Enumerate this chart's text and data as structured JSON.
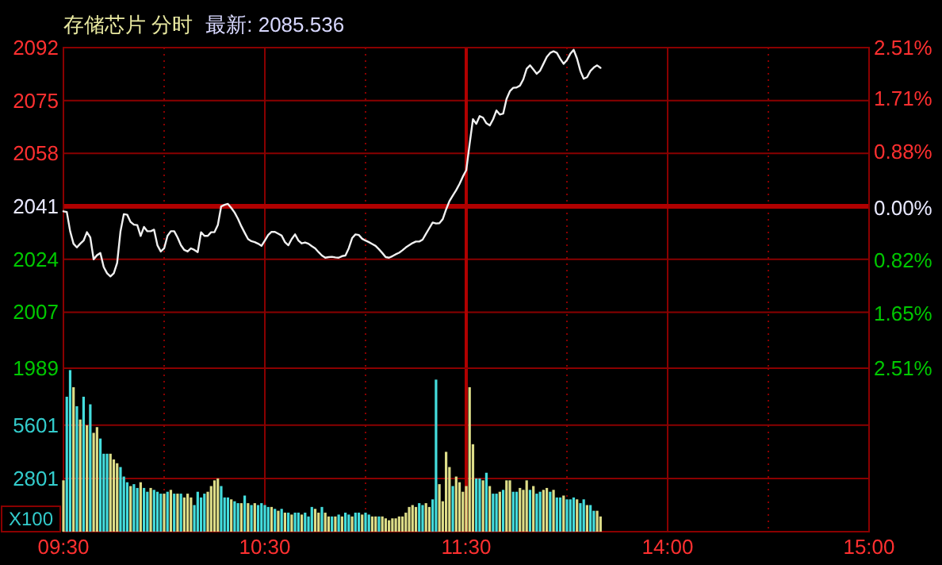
{
  "chart_data": [
    {
      "type": "line",
      "title": "存储芯片 分时",
      "subtitle": "最新: 2085.536",
      "tick_labels": "y",
      "categories": [
        "09:30",
        null,
        null,
        null,
        null,
        null,
        null,
        null,
        null,
        null,
        null,
        null,
        null,
        null,
        null,
        null,
        null,
        null,
        null,
        null,
        null,
        null,
        null,
        null,
        null,
        null,
        null,
        null,
        null,
        null,
        null,
        null,
        null,
        null,
        null,
        null,
        null,
        null,
        null,
        null,
        null,
        null,
        null,
        null,
        null,
        null,
        null,
        null,
        null,
        null,
        null,
        null,
        null,
        null,
        null,
        null,
        null,
        null,
        null,
        null,
        "10:30",
        null,
        null,
        null,
        null,
        null,
        null,
        null,
        null,
        null,
        null,
        null,
        null,
        null,
        null,
        null,
        null,
        null,
        null,
        null,
        null,
        null,
        null,
        null,
        null,
        null,
        null,
        null,
        null,
        null,
        null,
        null,
        null,
        null,
        null,
        null,
        null,
        null,
        null,
        null,
        null,
        null,
        null,
        null,
        null,
        null,
        null,
        null,
        null,
        null,
        null,
        null,
        null,
        null,
        null,
        null,
        null,
        null,
        null,
        null,
        "11:30",
        null,
        null,
        null,
        null,
        null,
        null,
        null,
        null,
        null,
        null,
        null,
        null,
        null,
        null,
        null,
        null,
        null,
        null,
        null,
        null,
        null,
        null,
        null,
        null,
        null,
        null,
        null,
        null,
        null,
        null,
        null,
        null,
        null,
        null,
        null,
        null,
        null,
        null,
        null,
        null,
        null,
        null,
        null,
        null,
        null,
        null,
        null,
        null,
        null,
        null,
        null,
        null,
        null,
        null,
        null,
        null,
        null,
        null,
        null,
        "14:00",
        null,
        null,
        null,
        null,
        null,
        null,
        null,
        null,
        null,
        null,
        null,
        null,
        null,
        null,
        null,
        null,
        null,
        null,
        null,
        null,
        null,
        null,
        null,
        null,
        null,
        null,
        null,
        null,
        null,
        null,
        null,
        null,
        null,
        null,
        null,
        null,
        null,
        null,
        null,
        null,
        null,
        null,
        null,
        null,
        null,
        null,
        null,
        null,
        null,
        null,
        null,
        null,
        null,
        null,
        null,
        null,
        null,
        null,
        null,
        "15:00"
      ],
      "ylim": [
        1989,
        2092
      ],
      "yticks": [
        2092,
        2075,
        2058,
        2041,
        2024,
        2007,
        1989
      ],
      "y2lim": [
        -2.51,
        2.51
      ],
      "y2ticks": [
        {
          "value": 2.51,
          "label": "2.51%"
        },
        {
          "value": 1.71,
          "label": "1.71%"
        },
        {
          "value": 0.88,
          "label": "0.88%"
        },
        {
          "value": 0,
          "label": "0.00%"
        },
        {
          "value": -0.82,
          "label": "0.82%"
        },
        {
          "value": -1.65,
          "label": "1.65%"
        },
        {
          "value": -2.51,
          "label": "2.51%"
        }
      ],
      "grid": true,
      "ref_lines": [
        {
          "axis": "y",
          "value": 2041,
          "color": "#b00000"
        },
        {
          "axis": "x",
          "value": "11:30",
          "color": "#b00000"
        }
      ],
      "series": [
        {
          "color": "#f0f0f0",
          "values": [
            2039.4,
            2039.2,
            2033,
            2029,
            2027.8,
            2029,
            2030,
            2032.7,
            2031,
            2024,
            2025.3,
            2026,
            2021.5,
            2019.5,
            2018.5,
            2019.5,
            2022.8,
            2033,
            2038.5,
            2038.3,
            2036,
            2035.1,
            2035,
            2031.5,
            2034.4,
            2033,
            2033,
            2033.5,
            2028.5,
            2026.5,
            2027.5,
            2031.5,
            2033,
            2033,
            2031,
            2028.5,
            2027,
            2026.5,
            2027.5,
            2027,
            2026.3,
            2032.7,
            2031.5,
            2031.5,
            2032.7,
            2032.7,
            2035,
            2041,
            2041.5,
            2041.8,
            2040.5,
            2039,
            2037,
            2034.6,
            2032.5,
            2030.5,
            2029.8,
            2029.5,
            2029,
            2028.3,
            2030,
            2031.8,
            2032.8,
            2032.8,
            2032.2,
            2031.6,
            2029.5,
            2028.5,
            2030.5,
            2032,
            2030,
            2029.1,
            2029.4,
            2029,
            2028.2,
            2027.5,
            2026.3,
            2025.2,
            2024.5,
            2024.7,
            2024.8,
            2024.6,
            2024.5,
            2025,
            2025.2,
            2027.5,
            2030.8,
            2032,
            2031.8,
            2030.6,
            2030,
            2029.5,
            2028.9,
            2028.3,
            2027.2,
            2026,
            2024.7,
            2024.5,
            2025,
            2025.6,
            2026.1,
            2026.9,
            2027.8,
            2028.5,
            2029.2,
            2029.7,
            2029.7,
            2030.3,
            2032.2,
            2034,
            2035.8,
            2035.5,
            2035.6,
            2036.9,
            2040,
            2042.7,
            2044.5,
            2046.2,
            2048.2,
            2050.6,
            2052.6,
            2061,
            2069,
            2067.5,
            2070,
            2069.5,
            2067.7,
            2067,
            2069,
            2071.8,
            2070.5,
            2070.8,
            2075.5,
            2078,
            2079.1,
            2079.2,
            2079.8,
            2081.8,
            2085.2,
            2086.3,
            2085,
            2083.6,
            2084.6,
            2086.8,
            2089,
            2090.3,
            2090.8,
            2090.3,
            2088.4,
            2086.8,
            2088,
            2090,
            2091.3,
            2088.5,
            2084.5,
            2082,
            2082.5,
            2084.5,
            2085.6,
            2086.3,
            2085.5,
            null,
            null,
            null,
            null,
            null,
            null,
            null,
            null,
            null,
            null,
            null,
            null,
            null,
            null,
            null,
            null,
            null,
            null,
            null,
            null,
            null,
            null,
            null,
            null,
            null,
            null,
            null,
            null,
            null,
            null,
            null,
            null,
            null,
            null,
            null,
            null,
            null,
            null,
            null,
            null,
            null,
            null,
            null,
            null,
            null,
            null,
            null,
            null,
            null,
            null,
            null,
            null,
            null,
            null,
            null,
            null,
            null,
            null,
            null,
            null,
            null,
            null,
            null,
            null,
            null,
            null,
            null,
            null,
            null,
            null,
            null,
            null,
            null,
            null,
            null,
            null,
            null,
            null,
            null,
            null
          ]
        }
      ]
    },
    {
      "type": "bar",
      "ylabel": "X100",
      "categories": [
        "09:30",
        null,
        null,
        null,
        null,
        null,
        null,
        null,
        null,
        null,
        null,
        null,
        null,
        null,
        null,
        null,
        null,
        null,
        null,
        null,
        null,
        null,
        null,
        null,
        null,
        null,
        null,
        null,
        null,
        null,
        null,
        null,
        null,
        null,
        null,
        null,
        null,
        null,
        null,
        null,
        null,
        null,
        null,
        null,
        null,
        null,
        null,
        null,
        null,
        null,
        null,
        null,
        null,
        null,
        null,
        null,
        null,
        null,
        null,
        null,
        "10:30",
        null,
        null,
        null,
        null,
        null,
        null,
        null,
        null,
        null,
        null,
        null,
        null,
        null,
        null,
        null,
        null,
        null,
        null,
        null,
        null,
        null,
        null,
        null,
        null,
        null,
        null,
        null,
        null,
        null,
        null,
        null,
        null,
        null,
        null,
        null,
        null,
        null,
        null,
        null,
        null,
        null,
        null,
        null,
        null,
        null,
        null,
        null,
        null,
        null,
        null,
        null,
        null,
        null,
        null,
        null,
        null,
        null,
        null,
        null,
        "11:30",
        null,
        null,
        null,
        null,
        null,
        null,
        null,
        null,
        null,
        null,
        null,
        null,
        null,
        null,
        null,
        null,
        null,
        null,
        null,
        null,
        null,
        null,
        null,
        null,
        null,
        null,
        null,
        null,
        null,
        null,
        null,
        null,
        null,
        null,
        null,
        null,
        null,
        null,
        null,
        null,
        null,
        null,
        null,
        null,
        null,
        null,
        null,
        null,
        null,
        null,
        null,
        null,
        null,
        null,
        null,
        null,
        null,
        null,
        null,
        "14:00",
        null,
        null,
        null,
        null,
        null,
        null,
        null,
        null,
        null,
        null,
        null,
        null,
        null,
        null,
        null,
        null,
        null,
        null,
        null,
        null,
        null,
        null,
        null,
        null,
        null,
        null,
        null,
        null,
        null,
        null,
        null,
        null,
        null,
        null,
        null,
        null,
        null,
        null,
        null,
        null,
        null,
        null,
        null,
        null,
        null,
        null,
        null,
        null,
        null,
        null,
        null,
        null,
        null,
        null,
        null,
        null,
        null,
        null,
        null,
        "15:00"
      ],
      "ylim": [
        0,
        8600
      ],
      "yticks": [
        2801,
        5601
      ],
      "grid": true,
      "ref_lines": [
        {
          "axis": "x",
          "value": "11:30",
          "color": "#b00000"
        }
      ],
      "series": [
        {
          "values": [
            2700,
            7100,
            8500,
            7600,
            6600,
            5900,
            7100,
            5600,
            6700,
            5200,
            5500,
            4900,
            4100,
            4100,
            4100,
            3800,
            3600,
            3400,
            2900,
            2600,
            2400,
            2500,
            2300,
            2600,
            2300,
            2100,
            2300,
            2200,
            2100,
            2000,
            2000,
            2100,
            2200,
            2000,
            2000,
            2000,
            1800,
            2000,
            1800,
            1400,
            2100,
            1800,
            2000,
            2100,
            2400,
            2700,
            2800,
            2400,
            1800,
            1800,
            1700,
            1600,
            1500,
            1500,
            1900,
            1500,
            1400,
            1500,
            1400,
            1500,
            1400,
            1300,
            1300,
            1200,
            1100,
            1200,
            1000,
            1000,
            900,
            1000,
            1000,
            900,
            1000,
            800,
            1300,
            1200,
            1000,
            1300,
            1000,
            800,
            800,
            800,
            900,
            800,
            1000,
            900,
            800,
            1000,
            1000,
            900,
            1000,
            900,
            800,
            800,
            800,
            800,
            700,
            600,
            700,
            700,
            800,
            800,
            1000,
            1300,
            1400,
            1300,
            1500,
            1400,
            1500,
            1300,
            1700,
            8000,
            2500,
            1600,
            4200,
            3400,
            2400,
            2900,
            2600,
            2100,
            2400,
            7600,
            4600,
            2800,
            2800,
            2700,
            3100,
            2400,
            2000,
            2000,
            2100,
            2200,
            2700,
            2700,
            2100,
            2100,
            2300,
            2200,
            2700,
            2200,
            2400,
            2000,
            2100,
            2200,
            2300,
            2100,
            2200,
            1800,
            1800,
            1900,
            1700,
            1700,
            1800,
            1700,
            1500,
            1700,
            1400,
            1400,
            1100,
            1100,
            800,
            null,
            null,
            null,
            null,
            null,
            null,
            null,
            null,
            null,
            null,
            null,
            null,
            null,
            null,
            null,
            null,
            null,
            null,
            null,
            null,
            null,
            null,
            null,
            null,
            null,
            null,
            null,
            null,
            null,
            null,
            null,
            null,
            null,
            null,
            null,
            null,
            null,
            null,
            null,
            null,
            null,
            null,
            null,
            null,
            null,
            null,
            null,
            null,
            null,
            null,
            null,
            null,
            null,
            null,
            null,
            null,
            null,
            null,
            null,
            null,
            null,
            null,
            null,
            null,
            null,
            null,
            null,
            null,
            null,
            null,
            null,
            null,
            null,
            null,
            null,
            null,
            null,
            null,
            null,
            null
          ],
          "colors": [
            "#dddd88",
            "#44dddd",
            "#44dddd",
            "#dddd88",
            "#44dddd",
            "#dddd88",
            "#44dddd",
            "#dddd88",
            "#44dddd",
            "#dddd88",
            "#dddd88",
            "#44dddd",
            "#44dddd",
            "#44dddd",
            "#dddd88",
            "#dddd88",
            "#dddd88",
            "#44dddd",
            "#44dddd",
            "#44dddd",
            "#dddd88",
            "#44dddd",
            "#44dddd",
            "#dddd88",
            "#44dddd",
            "#44dddd",
            "#dddd88",
            "#44dddd",
            "#44dddd",
            "#44dddd",
            "#dddd88",
            "#44dddd",
            "#dddd88",
            "#44dddd",
            "#dddd88",
            "#44dddd",
            "#dddd88",
            "#dddd88",
            "#dddd88",
            "#44dddd",
            "#44dddd",
            "#44dddd",
            "#44dddd",
            "#dddd88",
            "#dddd88",
            "#dddd88",
            "#dddd88",
            "#44dddd",
            "#44dddd",
            "#44dddd",
            "#dddd88",
            "#44dddd",
            "#44dddd",
            "#dddd88",
            "#44dddd",
            "#dddd88",
            "#44dddd",
            "#dddd88",
            "#44dddd",
            "#44dddd",
            "#44dddd",
            "#44dddd",
            "#dddd88",
            "#44dddd",
            "#dddd88",
            "#44dddd",
            "#dddd88",
            "#44dddd",
            "#dddd88",
            "#44dddd",
            "#44dddd",
            "#dddd88",
            "#44dddd",
            "#44dddd",
            "#44dddd",
            "#dddd88",
            "#dddd88",
            "#44dddd",
            "#dddd88",
            "#dddd88",
            "#44dddd",
            "#dddd88",
            "#44dddd",
            "#dddd88",
            "#44dddd",
            "#44dddd",
            "#dddd88",
            "#44dddd",
            "#44dddd",
            "#dddd88",
            "#44dddd",
            "#44dddd",
            "#dddd88",
            "#dddd88",
            "#44dddd",
            "#dddd88",
            "#dddd88",
            "#dddd88",
            "#dddd88",
            "#dddd88",
            "#dddd88",
            "#dddd88",
            "#dddd88",
            "#dddd88",
            "#dddd88",
            "#dddd88",
            "#44dddd",
            "#44dddd",
            "#dddd88",
            "#dddd88",
            "#44dddd",
            "#44dddd",
            "#dddd88",
            "#dddd88",
            "#dddd88",
            "#dddd88",
            "#44dddd",
            "#dddd88",
            "#dddd88",
            "#dddd88",
            "#dddd88",
            "#dddd88",
            "#dddd88",
            "#44dddd",
            "#44dddd",
            "#dddd88",
            "#44dddd",
            "#dddd88",
            "#44dddd",
            "#44dddd",
            "#dddd88",
            "#44dddd",
            "#dddd88",
            "#dddd88",
            "#44dddd",
            "#44dddd",
            "#dddd88",
            "#dddd88",
            "#dddd88",
            "#44dddd",
            "#dddd88",
            "#44dddd",
            "#44dddd",
            "#dddd88",
            "#dddd88",
            "#44dddd",
            "#dddd88",
            "#44dddd",
            "#44dddd",
            "#dddd88",
            "#44dddd",
            "#44dddd",
            "#44dddd",
            "#dddd88",
            "#44dddd",
            "#44dddd",
            "#dddd88",
            "#44dddd",
            "#44dddd",
            "#dddd88",
            "#dddd88",
            null,
            null,
            null,
            null,
            null,
            null,
            null,
            null,
            null,
            null,
            null,
            null,
            null,
            null,
            null,
            null,
            null,
            null,
            null,
            null,
            null,
            null,
            null,
            null,
            null,
            null,
            null,
            null,
            null,
            null,
            null,
            null,
            null,
            null,
            null,
            null,
            null,
            null,
            null,
            null,
            null,
            null,
            null,
            null,
            null,
            null,
            null,
            null,
            null,
            null,
            null,
            null,
            null,
            null,
            null,
            null,
            null,
            null,
            null,
            null,
            null,
            null,
            null,
            null,
            null,
            null,
            null,
            null,
            null,
            null,
            null,
            null,
            null,
            null,
            null,
            null,
            null,
            null,
            null,
            null
          ]
        }
      ]
    }
  ]
}
